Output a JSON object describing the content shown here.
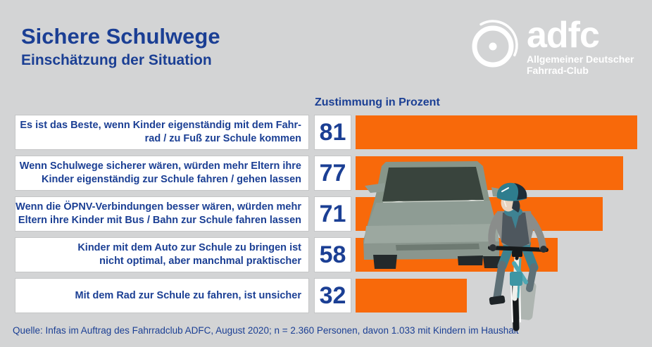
{
  "header": {
    "title": "Sichere Schulwege",
    "subtitle": "Einschätzung der Situation",
    "logo": {
      "brand": "adfc",
      "subtext": [
        "Allgemeiner Deutscher",
        "Fahrrad-Club"
      ]
    }
  },
  "chart_data": {
    "type": "bar",
    "orientation": "horizontal",
    "title": "Zustimmung in Prozent",
    "categories": [
      "Es ist das Beste, wenn Kinder eigenständig mit dem Fahrrad / zu Fuß zur Schule kommen",
      "Wenn Schulwege sicherer wären, würden mehr Eltern ihre Kinder eigenständig zur Schule fahren / gehen lassen",
      "Wenn die ÖPNV-Verbindungen besser wären, würden mehr Eltern ihre Kinder mit Bus / Bahn zur Schule fahren lassen",
      "Kinder mit dem Auto zur Schule zu bringen ist nicht optimal, aber manchmal praktischer",
      "Mit dem Rad zur Schule zu fahren, ist unsicher"
    ],
    "display_lines": [
      [
        "Es ist das Beste, wenn Kinder eigenständig mit dem Fahr-",
        "rad / zu Fuß zur Schule kommen"
      ],
      [
        "Wenn Schulwege sicherer wären, würden mehr Eltern ihre",
        "Kinder eigenständig zur Schule fahren / gehen lassen"
      ],
      [
        "Wenn die ÖPNV-Verbindungen besser wären, würden mehr",
        "Eltern ihre Kinder mit Bus / Bahn zur Schule fahren lassen"
      ],
      [
        "Kinder mit dem Auto zur Schule zu bringen ist",
        "nicht optimal, aber manchmal praktischer"
      ],
      [
        "Mit dem Rad zur Schule zu fahren, ist unsicher"
      ]
    ],
    "values": [
      81,
      77,
      71,
      58,
      32
    ],
    "xlim": [
      0,
      100
    ],
    "grid": false,
    "legend": false,
    "bar_color": "#F8690A",
    "value_label_color": "#1B3F94"
  },
  "footer": {
    "source": "Quelle: Infas im Auftrag des Fahrradclub ADFC, August 2020; n = 2.360 Personen, davon 1.033 mit Kindern im Haushalt"
  },
  "colors": {
    "background": "#D3D4D5",
    "accent_orange": "#F8690A",
    "text_blue": "#1B3F94",
    "box_white": "#FFFFFF",
    "logo_white": "#FFFFFF"
  },
  "icons": {
    "logo_icon": "bicycle-wheel-icon",
    "illustration": "car-and-child-cyclist-illustration"
  }
}
